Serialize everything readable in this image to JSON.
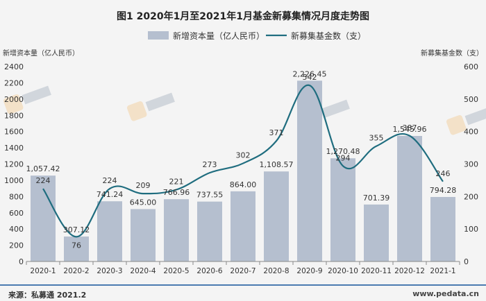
{
  "chart_data": {
    "type": "bar+line",
    "title": "图1  2020年1月至2021年1月基金新募集情况月度走势图",
    "categories": [
      "2020-1",
      "2020-2",
      "2020-3",
      "2020-4",
      "2020-5",
      "2020-6",
      "2020-7",
      "2020-8",
      "2020-9",
      "2020-10",
      "2020-11",
      "2020-12",
      "2021-1"
    ],
    "series": [
      {
        "name": "新增资本量（亿人民币）",
        "type": "bar",
        "axis": "left",
        "values": [
          1057.42,
          307.12,
          741.24,
          645.0,
          766.96,
          737.55,
          864.0,
          1108.57,
          2226.45,
          1270.48,
          701.39,
          1545.96,
          794.28
        ],
        "labels": [
          "1,057.42",
          "307.12",
          "741.24",
          "645.00",
          "766.96",
          "737.55",
          "864.00",
          "1,108.57",
          "2,226.45",
          "1,270.48",
          "701.39",
          "1,545.96",
          "794.28"
        ],
        "color": "#b5bfcf"
      },
      {
        "name": "新募集基金数（支）",
        "type": "line",
        "axis": "right",
        "values": [
          224,
          76,
          224,
          209,
          221,
          273,
          302,
          371,
          542,
          294,
          355,
          387,
          246
        ],
        "labels": [
          "224",
          "76",
          "224",
          "209",
          "221",
          "273",
          "302",
          "371",
          "542",
          "294",
          "355",
          "387",
          "246"
        ],
        "color": "#1f6d7f"
      }
    ],
    "left_axis": {
      "label": "新增资本量（亿人民币）",
      "ylim": [
        0,
        2400
      ],
      "ticks": [
        "0",
        "200",
        "400",
        "600",
        "800",
        "1000",
        "1200",
        "1400",
        "1600",
        "1800",
        "2000",
        "2200",
        "2400"
      ]
    },
    "right_axis": {
      "label": "新募集基金数（支）",
      "ylim": [
        0,
        600
      ],
      "ticks": [
        "0",
        "100",
        "200",
        "300",
        "400",
        "500",
        "600"
      ]
    },
    "legend": {
      "placement": "top-center",
      "bar_label": "新增资本量（亿人民币）",
      "line_label": "新募集基金数（支）"
    },
    "grid": false
  },
  "watermark": {
    "brand": "私募通",
    "sub": "www.pedata.cn"
  },
  "footer": {
    "source": "来源：私募通 2021.2",
    "site": "www.pedata.cn"
  }
}
